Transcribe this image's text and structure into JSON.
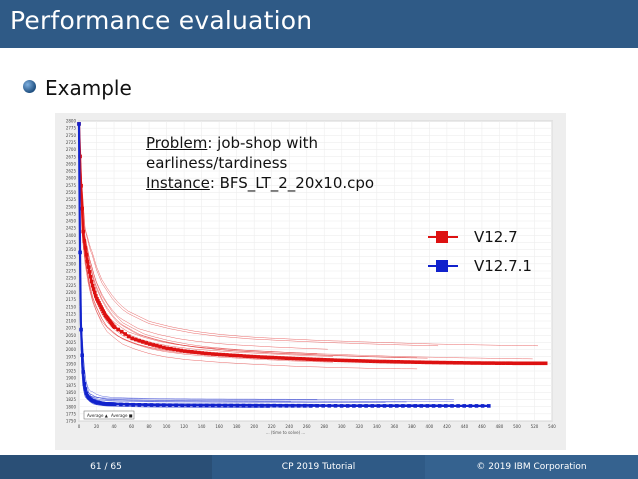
{
  "slide": {
    "title": "Performance evaluation",
    "bullet": "Example"
  },
  "annotation": {
    "problem_label": "Problem",
    "problem_text": ": job-shop with",
    "problem_text2": "earliness/tardiness",
    "instance_label": "Instance",
    "instance_text": ": BFS_LT_2_20x10.cpo"
  },
  "legend": [
    {
      "name": "V12.7",
      "color": "#dd1111"
    },
    {
      "name": "V12.7.1",
      "color": "#1122cc"
    }
  ],
  "footer": {
    "page": "61 / 65",
    "center": "CP 2019 Tutorial",
    "right": "© 2019 IBM Corporation"
  },
  "chart_data": {
    "type": "line",
    "title": "",
    "xlabel": "",
    "ylabel": "",
    "xlim": [
      0,
      540
    ],
    "ylim": [
      1750,
      2800
    ],
    "x_ticks": [
      0,
      20,
      40,
      60,
      80,
      100,
      120,
      140,
      160,
      180,
      200,
      220,
      240,
      260,
      280,
      300,
      320,
      340,
      360,
      380,
      400,
      420,
      440,
      460,
      480,
      500,
      520,
      540
    ],
    "y_ticks": [
      1750,
      1775,
      1800,
      1825,
      1850,
      1875,
      1900,
      1925,
      1950,
      1975,
      2000,
      2025,
      2050,
      2075,
      2100,
      2125,
      2150,
      2175,
      2200,
      2225,
      2250,
      2275,
      2300,
      2325,
      2350,
      2375,
      2400,
      2425,
      2450,
      2475,
      2500,
      2525,
      2550,
      2575,
      2600,
      2625,
      2650,
      2675,
      2700,
      2725,
      2750,
      2775,
      2800
    ],
    "series": [
      {
        "name": "V12.7",
        "color": "#dd1111",
        "x": [
          0,
          2,
          5,
          10,
          15,
          20,
          30,
          40,
          50,
          60,
          80,
          100,
          120,
          150,
          200,
          250,
          300,
          350,
          400,
          450,
          500,
          535
        ],
        "y": [
          2790,
          2600,
          2400,
          2300,
          2230,
          2180,
          2120,
          2080,
          2060,
          2040,
          2020,
          2005,
          1995,
          1985,
          1975,
          1968,
          1962,
          1958,
          1955,
          1953,
          1952,
          1952
        ]
      },
      {
        "name": "V12.7.1",
        "color": "#1122cc",
        "x": [
          0,
          1,
          2,
          4,
          6,
          8,
          10,
          15,
          20,
          30,
          50,
          80,
          120,
          200,
          300,
          400,
          470
        ],
        "y": [
          2790,
          2400,
          2100,
          1950,
          1880,
          1850,
          1835,
          1822,
          1815,
          1810,
          1808,
          1806,
          1805,
          1804,
          1803,
          1803,
          1803
        ]
      }
    ],
    "x_axis_caption": "... (time to solve) ...",
    "bottom_legend": [
      "Average ▲",
      "Average ■"
    ]
  }
}
